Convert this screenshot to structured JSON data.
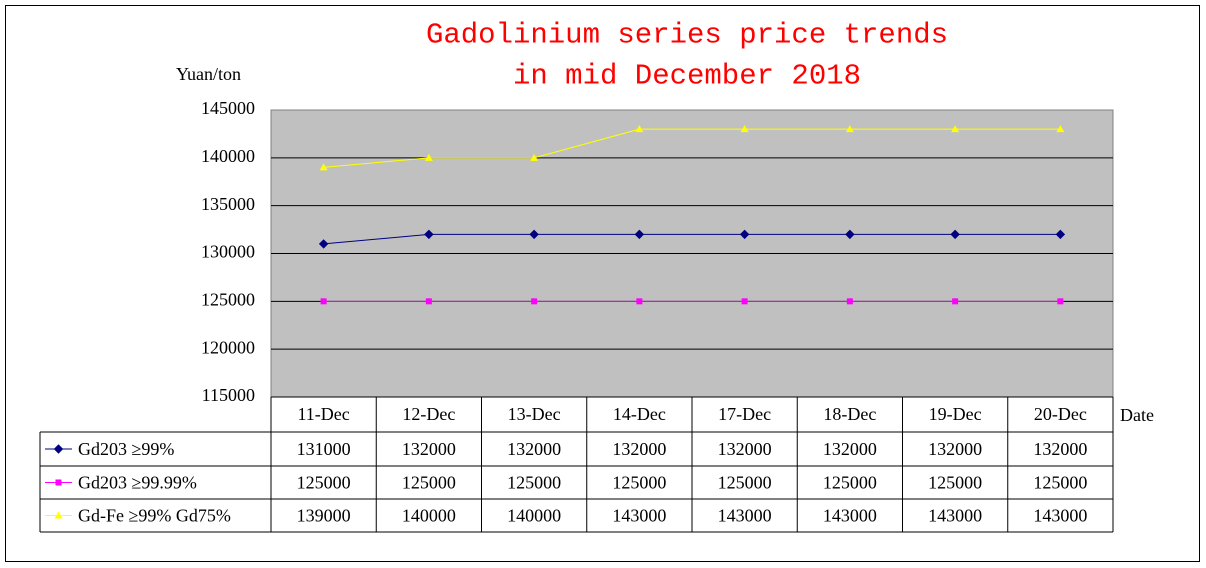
{
  "chart_data": {
    "type": "line",
    "title": [
      "Gadolinium series price trends",
      "in mid December 2018"
    ],
    "y_label": "Yuan/ton",
    "x_label": "Date",
    "categories": [
      "11-Dec",
      "12-Dec",
      "13-Dec",
      "14-Dec",
      "17-Dec",
      "18-Dec",
      "19-Dec",
      "20-Dec"
    ],
    "series": [
      {
        "name": "Gd203 ≥99%",
        "color": "#000080",
        "marker": "diamond",
        "values": [
          131000,
          132000,
          132000,
          132000,
          132000,
          132000,
          132000,
          132000
        ]
      },
      {
        "name": "Gd203 ≥99.99%",
        "color": "#ff00ff",
        "marker": "square",
        "values": [
          125000,
          125000,
          125000,
          125000,
          125000,
          125000,
          125000,
          125000
        ]
      },
      {
        "name": "Gd-Fe ≥99% Gd75%",
        "color": "#ffff00",
        "marker": "triangle",
        "values": [
          139000,
          140000,
          140000,
          143000,
          143000,
          143000,
          143000,
          143000
        ]
      }
    ],
    "ylim": [
      115000,
      145000
    ],
    "yticks": [
      115000,
      120000,
      125000,
      130000,
      135000,
      140000,
      145000
    ],
    "grid": true,
    "plot_background": "#c0c0c0",
    "title_color": "#ff0000"
  }
}
